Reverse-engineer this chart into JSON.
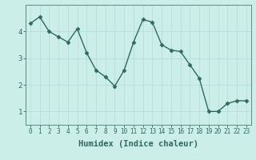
{
  "x": [
    0,
    1,
    2,
    3,
    4,
    5,
    6,
    7,
    8,
    9,
    10,
    11,
    12,
    13,
    14,
    15,
    16,
    17,
    18,
    19,
    20,
    21,
    22,
    23
  ],
  "y": [
    4.3,
    4.55,
    4.0,
    3.8,
    3.6,
    4.1,
    3.2,
    2.55,
    2.3,
    1.95,
    2.55,
    3.6,
    4.45,
    4.35,
    3.5,
    3.3,
    3.25,
    2.75,
    2.25,
    1.0,
    1.0,
    1.3,
    1.4,
    1.4
  ],
  "line_color": "#2e6b5e",
  "marker": "D",
  "marker_size": 2.5,
  "background_color": "#cceee8",
  "grid_color": "#b8ddd8",
  "xlabel": "Humidex (Indice chaleur)",
  "xlim": [
    -0.5,
    23.5
  ],
  "ylim": [
    0.5,
    5.0
  ],
  "yticks": [
    1,
    2,
    3,
    4
  ],
  "xticks": [
    0,
    1,
    2,
    3,
    4,
    5,
    6,
    7,
    8,
    9,
    10,
    11,
    12,
    13,
    14,
    15,
    16,
    17,
    18,
    19,
    20,
    21,
    22,
    23
  ],
  "tick_color": "#2e6b5e",
  "axis_color": "#5a8a80",
  "xlabel_fontsize": 7.5,
  "tick_fontsize": 5.5,
  "ytick_fontsize": 6.5,
  "linewidth": 1.0
}
